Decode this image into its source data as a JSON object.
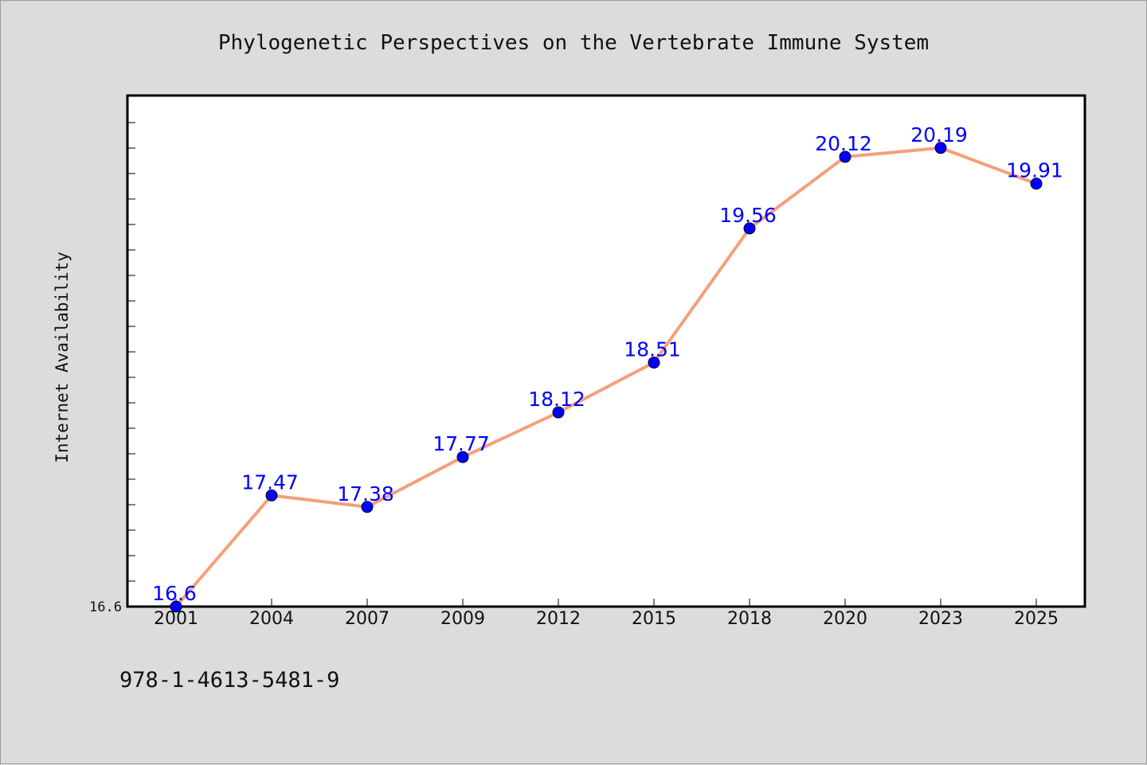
{
  "chart_data": {
    "type": "line",
    "title": "Phylogenetic Perspectives on the Vertebrate Immune System",
    "xlabel": "",
    "ylabel": "Internet Availability",
    "categories": [
      "2001",
      "2004",
      "2007",
      "2009",
      "2012",
      "2015",
      "2018",
      "2020",
      "2023",
      "2025"
    ],
    "series": [
      {
        "values": [
          16.6,
          17.47,
          17.38,
          17.77,
          18.12,
          18.51,
          19.56,
          20.12,
          20.19,
          19.91
        ],
        "labels": [
          "16.6",
          "17.47",
          "17.38",
          "17.77",
          "18.12",
          "18.51",
          "19.56",
          "20.12",
          "20.19",
          "19.91"
        ]
      }
    ],
    "ylim": [
      16.6,
      20.6
    ],
    "yticks_labeled": [
      "16.6"
    ],
    "grid": false,
    "legend": "none",
    "colors": {
      "line": "#f4a07a",
      "marker": "#0000ff",
      "label": "#0000ff",
      "plot_background": "#ffffff",
      "page_background": "#dcdcdc"
    }
  },
  "footnote": "978-1-4613-5481-9"
}
